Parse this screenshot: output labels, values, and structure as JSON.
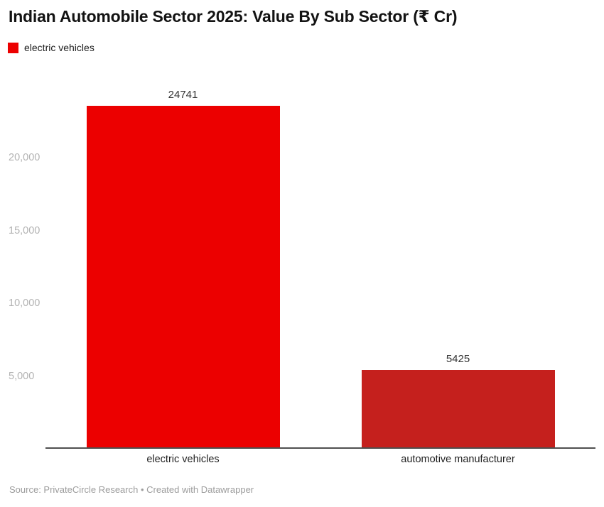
{
  "chart_data": {
    "type": "bar",
    "title": "Indian Automobile Sector 2025: Value By Sub Sector (₹ Cr)",
    "categories": [
      "electric vehicles",
      "automotive manufacturer"
    ],
    "values": [
      24741,
      5425
    ],
    "value_labels": [
      "24741",
      "5425"
    ],
    "bar_colors": [
      "#ec0000",
      "#c5201d"
    ],
    "series_name": "electric vehicles",
    "legend": [
      {
        "label": "electric vehicles",
        "color": "#ec0000"
      }
    ],
    "legend_position": "top-left",
    "y_tick_values": [
      5000,
      10000,
      15000,
      20000
    ],
    "y_tick_labels": [
      "5,000",
      "10,000",
      "15,000",
      "20,000"
    ],
    "ylim": [
      0,
      24741
    ],
    "xlabel": "",
    "ylabel": "",
    "grid": false,
    "source": "Source: PrivateCircle Research • Created with Datawrapper"
  }
}
